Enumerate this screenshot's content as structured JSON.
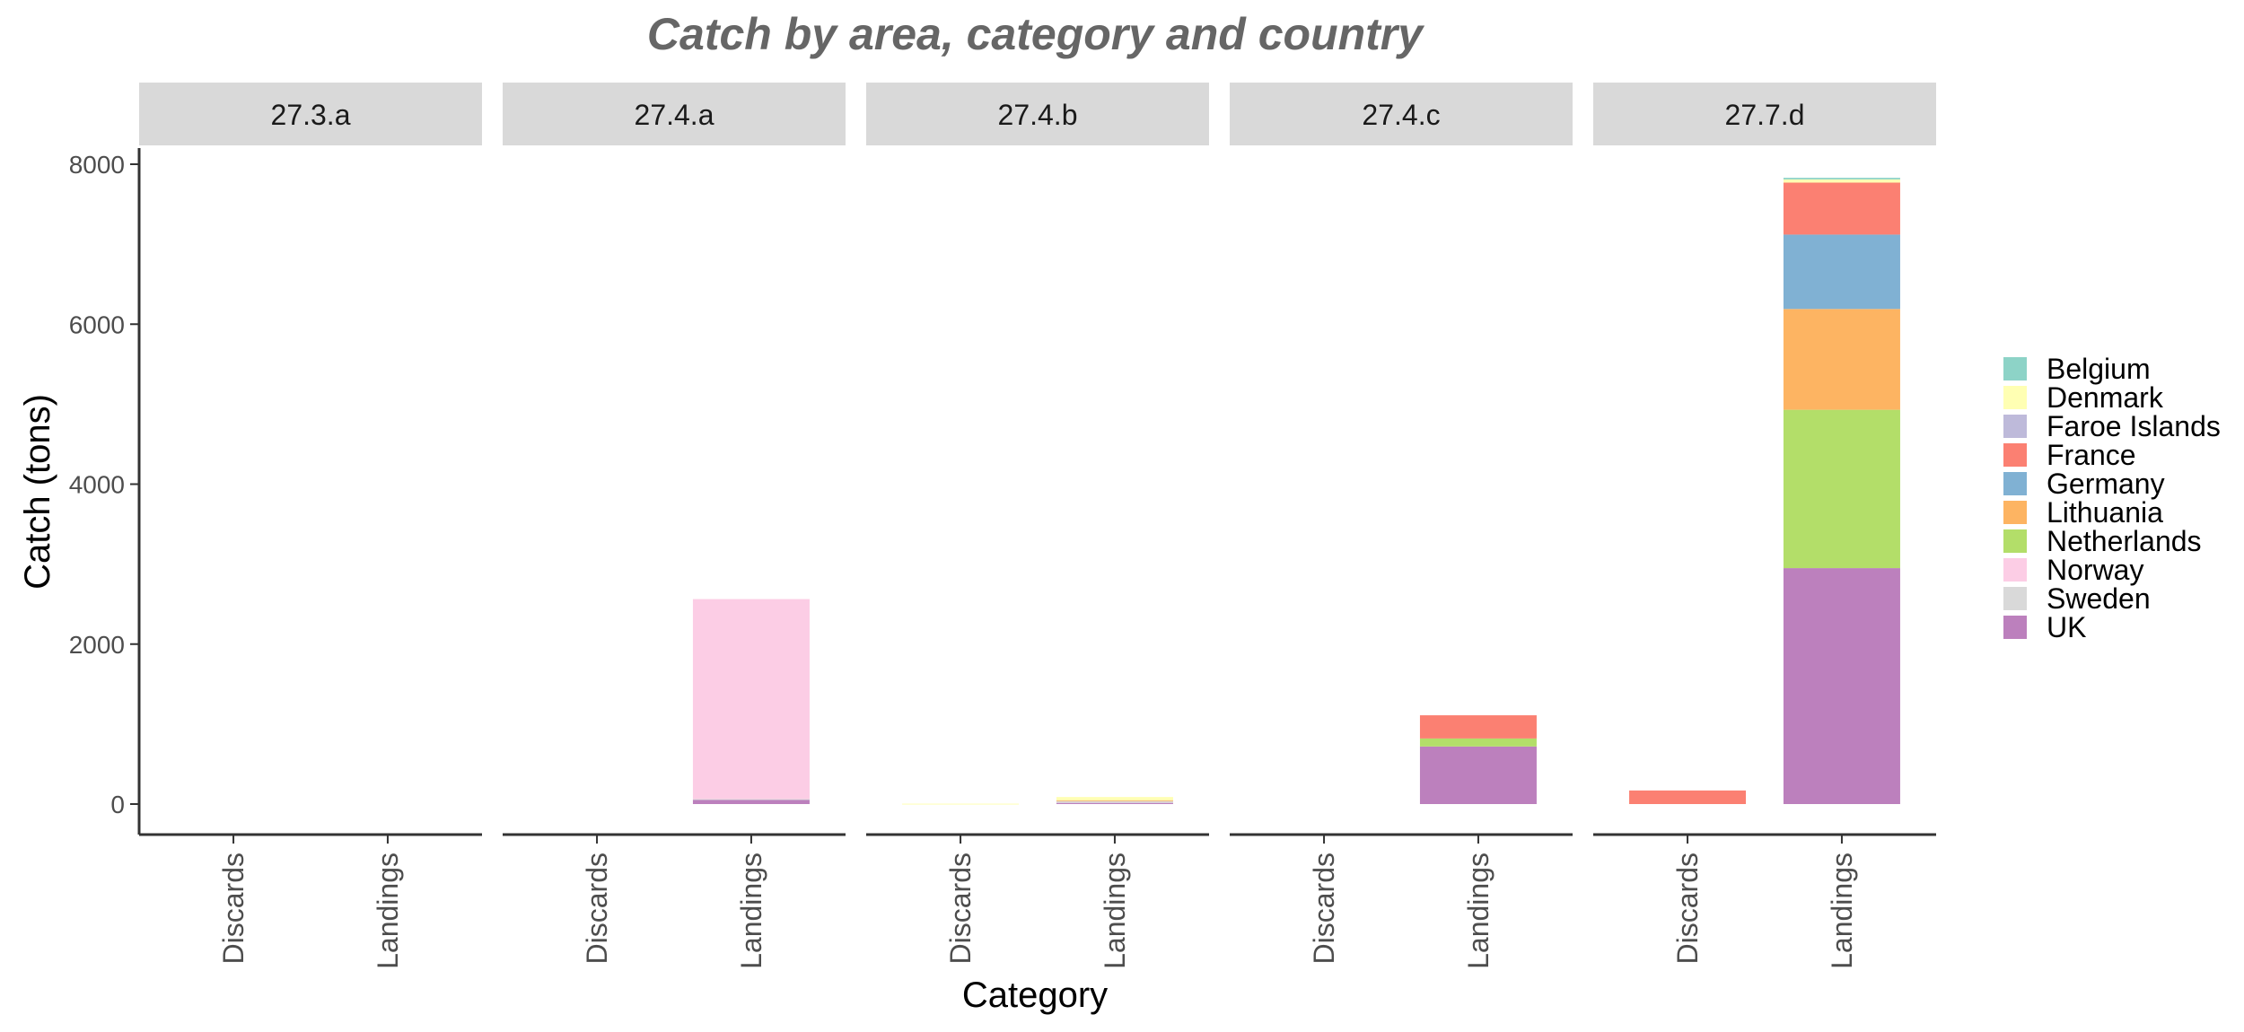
{
  "chart_data": {
    "type": "bar",
    "stacked": true,
    "faceted": true,
    "title": "Catch by area, category and country",
    "xlabel": "Category",
    "ylabel": "Catch (tons)",
    "ylim": [
      0,
      8000
    ],
    "y_ticks": [
      "0",
      "2000",
      "4000",
      "6000",
      "8000"
    ],
    "y_tick_values": [
      0,
      2000,
      4000,
      6000,
      8000
    ],
    "grid": false,
    "legend_position": "right",
    "categories": [
      "Discards",
      "Landings"
    ],
    "countries": [
      "Belgium",
      "Denmark",
      "Faroe Islands",
      "France",
      "Germany",
      "Lithuania",
      "Netherlands",
      "Norway",
      "Sweden",
      "UK"
    ],
    "colors": {
      "Belgium": "#8DD3C7",
      "Denmark": "#FFFFB3",
      "Faroe Islands": "#BEBADA",
      "France": "#FB8072",
      "Germany": "#80B1D3",
      "Lithuania": "#FDB462",
      "Netherlands": "#B3DE69",
      "Norway": "#FCCDE5",
      "Sweden": "#D9D9D9",
      "UK": "#BC80BD"
    },
    "facets": [
      {
        "area": "27.3.a",
        "bars": {
          "Discards": {},
          "Landings": {}
        }
      },
      {
        "area": "27.4.a",
        "bars": {
          "Discards": {},
          "Landings": {
            "UK": 55,
            "Norway": 2500,
            "Sweden": 8
          }
        }
      },
      {
        "area": "27.4.b",
        "bars": {
          "Discards": {
            "Denmark": 5
          },
          "Landings": {
            "UK": 15,
            "Sweden": 25,
            "Denmark": 40,
            "Lithuania": 8
          }
        }
      },
      {
        "area": "27.4.c",
        "bars": {
          "Discards": {},
          "Landings": {
            "UK": 720,
            "Netherlands": 100,
            "France": 290
          }
        }
      },
      {
        "area": "27.7.d",
        "bars": {
          "Discards": {
            "France": 170
          },
          "Landings": {
            "UK": 2950,
            "Netherlands": 1980,
            "Lithuania": 1260,
            "Germany": 930,
            "France": 650,
            "Belgium": 20,
            "Denmark": 40
          }
        }
      }
    ]
  }
}
